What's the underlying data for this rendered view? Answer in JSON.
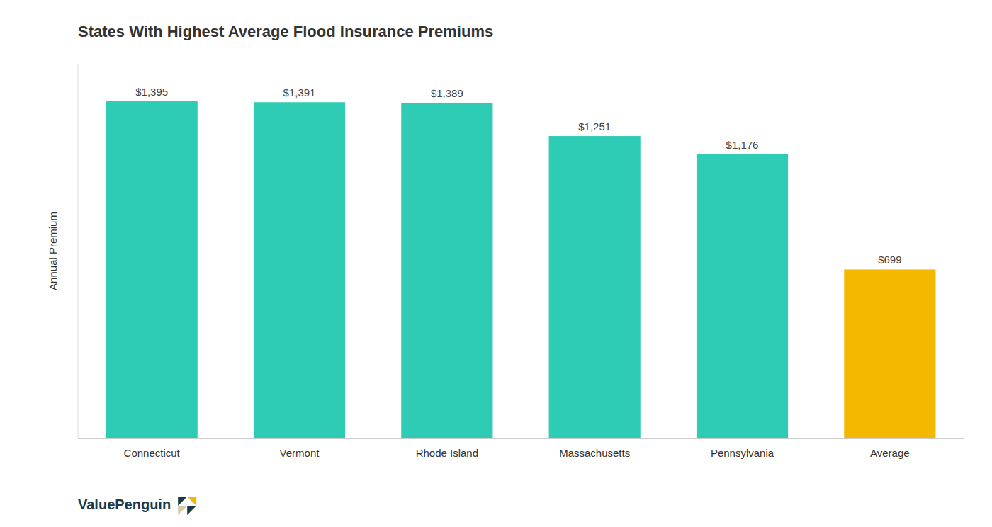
{
  "chart_data": {
    "type": "bar",
    "title": "States With Highest Average Flood Insurance Premiums",
    "categories": [
      "Connecticut",
      "Vermont",
      "Rhode Island",
      "Massachusetts",
      "Pennsylvania",
      "Average"
    ],
    "values": [
      1395,
      1391,
      1389,
      1251,
      1176,
      699
    ],
    "value_labels": [
      "$1,395",
      "$1,391",
      "$1,389",
      "$1,251",
      "$1,176",
      "$699"
    ],
    "colors": [
      "#2ECBB5",
      "#2ECBB5",
      "#2ECBB5",
      "#2ECBB5",
      "#2ECBB5",
      "#F5B800"
    ],
    "ylabel": "Annual Premium",
    "ylim": [
      0,
      1550
    ],
    "data_labels": true,
    "tick_labels": "x",
    "grid": false,
    "annotations": [
      "ValuePenguin"
    ]
  }
}
